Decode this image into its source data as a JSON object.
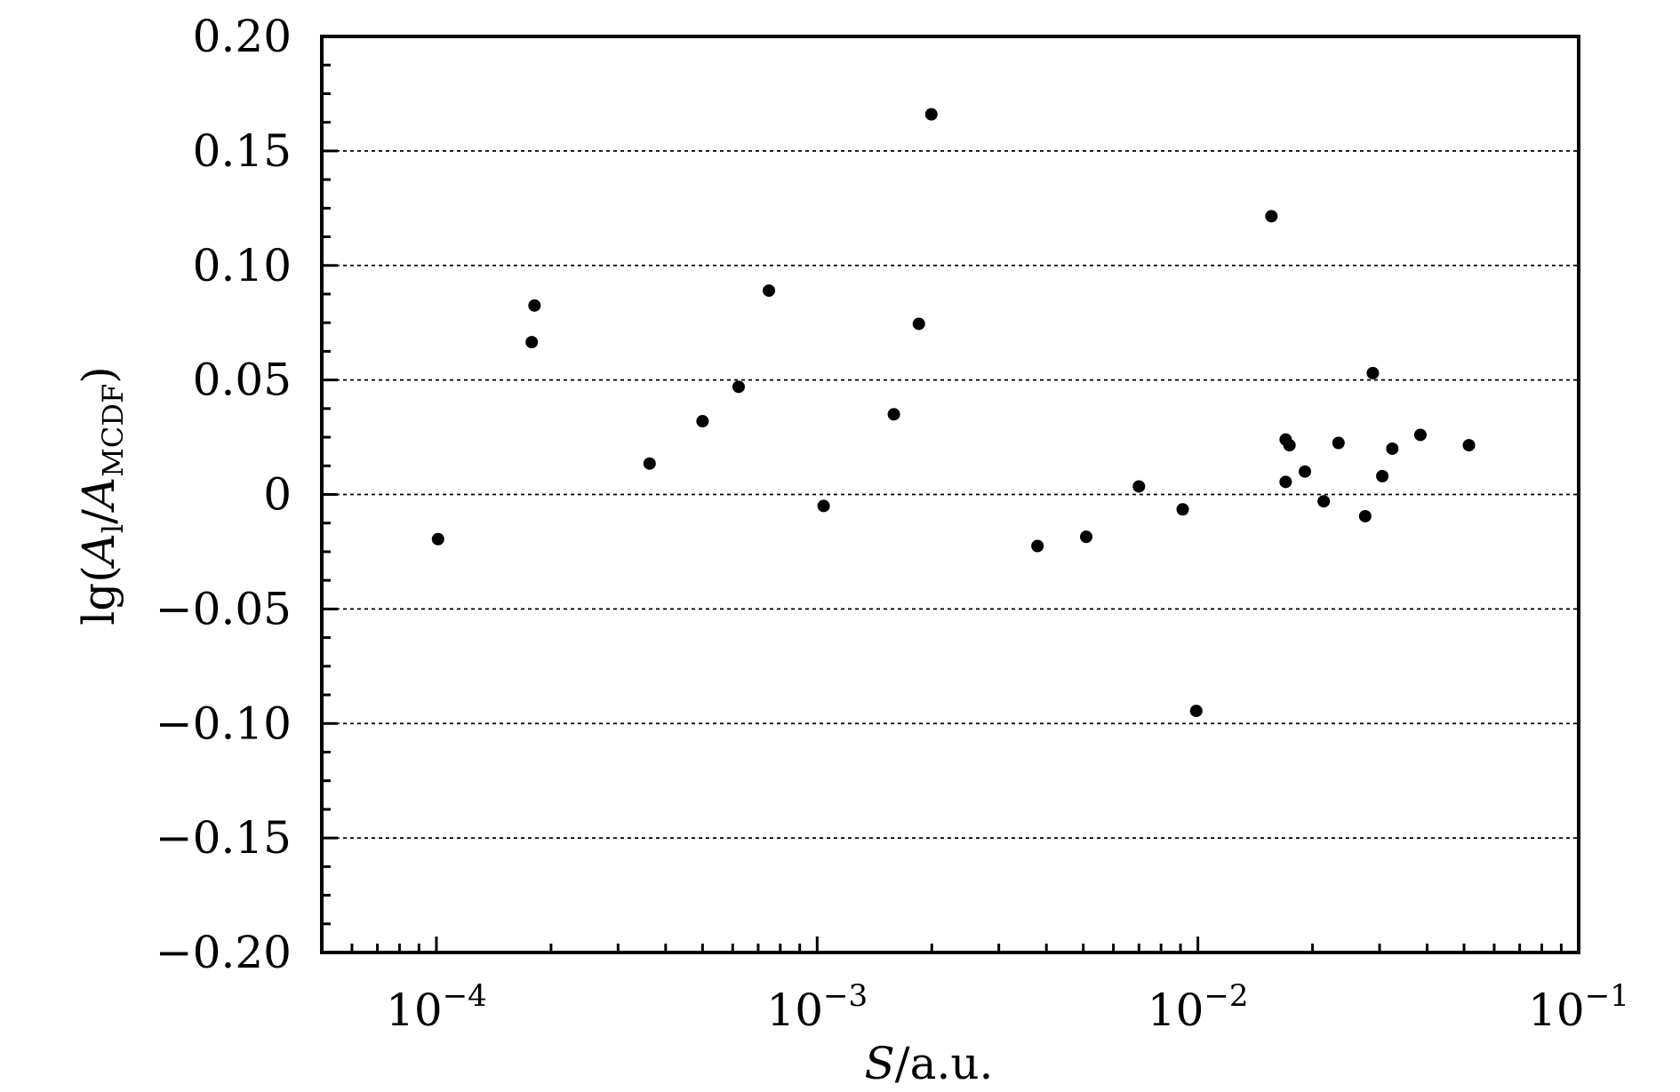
{
  "chart_data": {
    "type": "scatter",
    "xscale": "log",
    "xlim": [
      5e-05,
      0.1
    ],
    "ylim": [
      -0.2,
      0.2
    ],
    "xticks": [
      0.0001,
      0.001,
      0.01,
      0.1
    ],
    "xtick_labels": [
      {
        "base": "10",
        "exp": "−4"
      },
      {
        "base": "10",
        "exp": "−3"
      },
      {
        "base": "10",
        "exp": "−2"
      },
      {
        "base": "10",
        "exp": "−1"
      }
    ],
    "yticks": [
      0.2,
      0.15,
      0.1,
      0.05,
      0,
      -0.05,
      -0.1,
      -0.15,
      -0.2
    ],
    "ytick_labels": [
      "0.20",
      "0.15",
      "0.10",
      "0.05",
      "0",
      "−0.05",
      "−0.10",
      "−0.15",
      "−0.20"
    ],
    "grid": "horizontal-dotted",
    "xlabel": {
      "var": "S",
      "unit": "/a.u."
    },
    "ylabel": {
      "prefix": "lg(",
      "a1": "A",
      "sub1": "l",
      "slash": "/",
      "a2": "A",
      "sub2": "MCDF",
      "suffix": ")"
    },
    "points": [
      {
        "x": 0.000101,
        "y": -0.0195
      },
      {
        "x": 0.000178,
        "y": 0.0665
      },
      {
        "x": 0.000181,
        "y": 0.0825
      },
      {
        "x": 0.000363,
        "y": 0.0135
      },
      {
        "x": 0.0005,
        "y": 0.032
      },
      {
        "x": 0.000622,
        "y": 0.047
      },
      {
        "x": 0.000747,
        "y": 0.089
      },
      {
        "x": 0.00104,
        "y": -0.005
      },
      {
        "x": 0.00159,
        "y": 0.035
      },
      {
        "x": 0.00185,
        "y": 0.0745
      },
      {
        "x": 0.001995,
        "y": 0.166
      },
      {
        "x": 0.00379,
        "y": -0.0225
      },
      {
        "x": 0.00509,
        "y": -0.0185
      },
      {
        "x": 0.007,
        "y": 0.0035
      },
      {
        "x": 0.00912,
        "y": -0.0065
      },
      {
        "x": 0.0099,
        "y": -0.0945
      },
      {
        "x": 0.0156,
        "y": 0.1215
      },
      {
        "x": 0.017,
        "y": 0.024
      },
      {
        "x": 0.017,
        "y": 0.0055
      },
      {
        "x": 0.0174,
        "y": 0.0215
      },
      {
        "x": 0.0191,
        "y": 0.01
      },
      {
        "x": 0.0214,
        "y": -0.003
      },
      {
        "x": 0.0234,
        "y": 0.0225
      },
      {
        "x": 0.0275,
        "y": -0.0095
      },
      {
        "x": 0.0288,
        "y": 0.053
      },
      {
        "x": 0.0305,
        "y": 0.008
      },
      {
        "x": 0.0324,
        "y": 0.02
      },
      {
        "x": 0.0384,
        "y": 0.026
      },
      {
        "x": 0.0515,
        "y": 0.0215
      }
    ]
  }
}
